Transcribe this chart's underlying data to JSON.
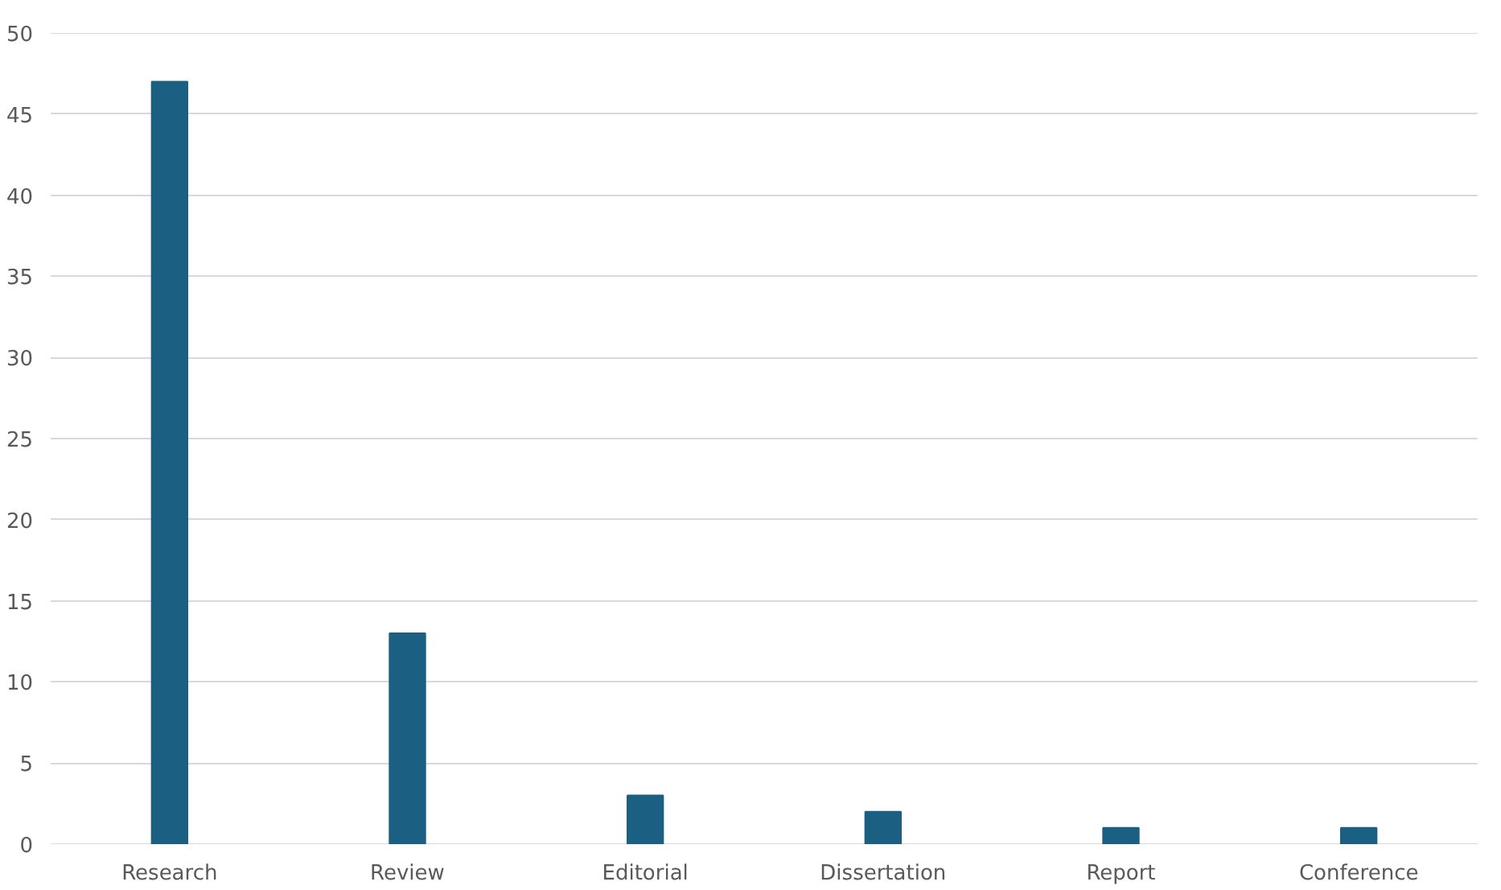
{
  "chart_data": {
    "type": "bar",
    "categories": [
      "Research",
      "Review",
      "Editorial",
      "Dissertation",
      "Report",
      "Conference"
    ],
    "values": [
      47,
      13,
      3,
      2,
      1,
      1
    ],
    "color": "#1b5f82",
    "ylim": [
      0,
      50
    ],
    "yticks": [
      0,
      5,
      10,
      15,
      20,
      25,
      30,
      35,
      40,
      45,
      50
    ],
    "grid": "y"
  }
}
